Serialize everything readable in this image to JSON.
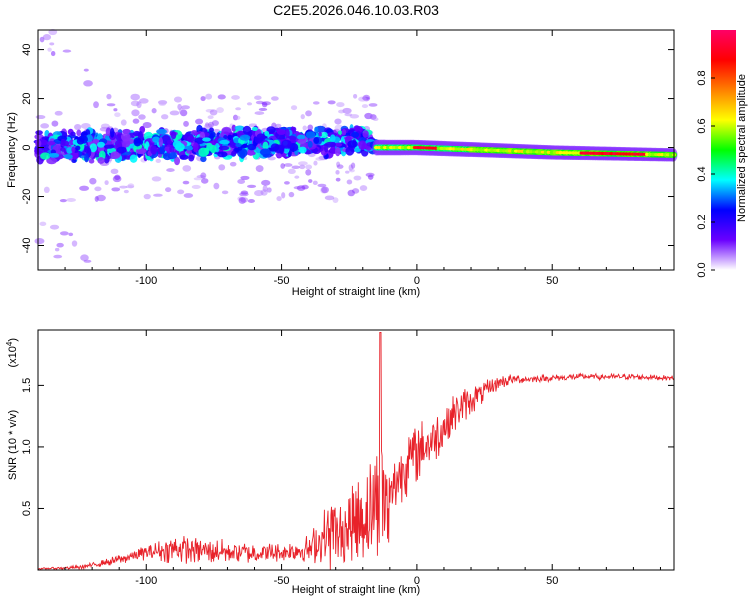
{
  "title": "C2E5.2026.046.10.03.R03",
  "chart_data": [
    {
      "type": "heatmap",
      "xlabel": "Height of straight line (km)",
      "ylabel": "Frequency (Hz)",
      "xlim": [
        -140,
        95
      ],
      "ylim": [
        -50,
        48
      ],
      "xticks": [
        -100,
        -50,
        0,
        50
      ],
      "xtick_labels": [
        "-100",
        "-50",
        "0",
        "50"
      ],
      "yticks": [
        -40,
        -20,
        0,
        20,
        40
      ],
      "ytick_labels": [
        "-40",
        "-20",
        "0",
        "20",
        "40"
      ],
      "colorbar": {
        "label": "Normalized spectral amplitude",
        "range": [
          0,
          1
        ],
        "ticks": [
          0,
          0.2,
          0.4,
          0.6,
          0.8
        ],
        "tick_labels": [
          "0.0",
          "0.2",
          "0.4",
          "0.6",
          "0.8"
        ],
        "colormap": [
          "#ffffff",
          "#6a00ff",
          "#0000ff",
          "#00ffff",
          "#00ff00",
          "#ffff00",
          "#ff8000",
          "#ff0000",
          "#ff0066"
        ]
      },
      "ridge_center_hz": {
        "x": [
          -140,
          -20,
          -15,
          0,
          50,
          95
        ],
        "y": [
          0,
          3,
          0,
          0,
          -2,
          -3
        ]
      },
      "ridge_halfwidth_hz": {
        "x": [
          -140,
          -20,
          -15,
          95
        ],
        "y": [
          8,
          7,
          2,
          1.5
        ]
      }
    },
    {
      "type": "line",
      "xlabel": "Height of straight line (km)",
      "ylabel": "SNR (10 * v/v)",
      "multiplier_label": "(x10",
      "multiplier_exp": "4",
      "xlim": [
        -140,
        95
      ],
      "ylim": [
        0,
        1.95
      ],
      "xticks": [
        -100,
        -50,
        0,
        50
      ],
      "xtick_labels": [
        "-100",
        "-50",
        "0",
        "50"
      ],
      "yticks": [
        0.5,
        1.0,
        1.5
      ],
      "ytick_labels": [
        "0.5",
        "1.0",
        "1.5"
      ],
      "line_color": "#e8222a",
      "series": [
        {
          "x": [
            -140,
            -125,
            -115,
            -100,
            -90,
            -80,
            -70,
            -60,
            -50,
            -40,
            -30,
            -25,
            -20,
            -15,
            -12,
            -10,
            -5,
            0,
            5,
            10,
            15,
            20,
            25,
            30,
            35,
            40,
            50,
            60,
            70,
            80,
            95
          ],
          "y": [
            0.01,
            0.02,
            0.06,
            0.14,
            0.17,
            0.16,
            0.15,
            0.14,
            0.14,
            0.17,
            0.32,
            0.45,
            0.55,
            0.7,
            0.75,
            0.6,
            0.85,
            0.95,
            1.05,
            1.15,
            1.3,
            1.38,
            1.45,
            1.52,
            1.55,
            1.55,
            1.56,
            1.57,
            1.57,
            1.57,
            1.56
          ]
        }
      ],
      "noise_envelope": {
        "x": [
          -140,
          -120,
          -100,
          -90,
          -50,
          -40,
          -30,
          -25,
          -20,
          -15,
          -12,
          -10,
          -5,
          0,
          10,
          20,
          30,
          40,
          95
        ],
        "amplitude": [
          0.005,
          0.02,
          0.06,
          0.12,
          0.08,
          0.12,
          0.35,
          0.45,
          0.5,
          0.55,
          0.6,
          0.2,
          0.3,
          0.25,
          0.2,
          0.12,
          0.06,
          0.03,
          0.02
        ]
      },
      "annotations": [
        {
          "x": -13.5,
          "y": 1.93,
          "label": ""
        }
      ]
    }
  ]
}
